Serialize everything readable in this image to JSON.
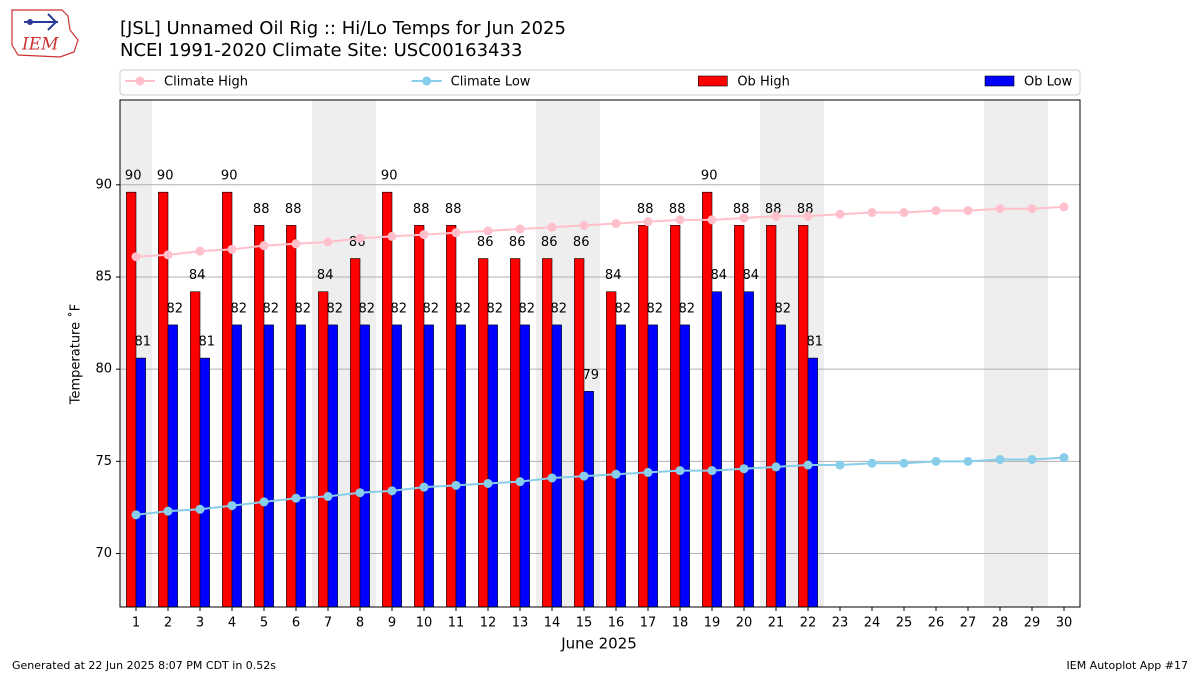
{
  "chart_data": {
    "type": "bar",
    "title": "[JSL] Unnamed Oil Rig :: Hi/Lo Temps for Jun 2025",
    "subtitle": "NCEI 1991-2020 Climate Site: USC00163433",
    "x_label": "June 2025",
    "y_label": "Temperature ˚F",
    "categories": [
      "1",
      "2",
      "3",
      "4",
      "5",
      "6",
      "7",
      "8",
      "9",
      "10",
      "11",
      "12",
      "13",
      "14",
      "15",
      "16",
      "17",
      "18",
      "19",
      "20",
      "21",
      "22",
      "23",
      "24",
      "25",
      "26",
      "27",
      "28",
      "29",
      "30"
    ],
    "weekend_shading": [
      true,
      false,
      false,
      false,
      false,
      false,
      true,
      true,
      false,
      false,
      false,
      false,
      false,
      true,
      true,
      false,
      false,
      false,
      false,
      false,
      true,
      true,
      false,
      false,
      false,
      false,
      false,
      true,
      true,
      false
    ],
    "ylim": [
      67.1,
      94.6
    ],
    "yticks": [
      70,
      75,
      80,
      85,
      90
    ],
    "grid": true,
    "legend": "top",
    "series": [
      {
        "name": "Climate High",
        "type": "line",
        "color": "#ffc0cb",
        "values": [
          86.1,
          86.2,
          86.4,
          86.5,
          86.7,
          86.8,
          86.9,
          87.1,
          87.2,
          87.3,
          87.4,
          87.5,
          87.6,
          87.7,
          87.8,
          87.9,
          88.0,
          88.1,
          88.1,
          88.2,
          88.3,
          88.3,
          88.4,
          88.5,
          88.5,
          88.6,
          88.6,
          88.7,
          88.7,
          88.8
        ]
      },
      {
        "name": "Climate Low",
        "type": "line",
        "color": "#87ceeb",
        "values": [
          72.1,
          72.3,
          72.4,
          72.6,
          72.8,
          73.0,
          73.1,
          73.3,
          73.4,
          73.6,
          73.7,
          73.8,
          73.9,
          74.1,
          74.2,
          74.3,
          74.4,
          74.5,
          74.5,
          74.6,
          74.7,
          74.8,
          74.8,
          74.9,
          74.9,
          75.0,
          75.0,
          75.1,
          75.1,
          75.2
        ]
      },
      {
        "name": "Ob High",
        "type": "bar",
        "color": "#ff0000",
        "values": [
          89.6,
          89.6,
          84.2,
          89.6,
          87.8,
          87.8,
          84.2,
          86.0,
          89.6,
          87.8,
          87.8,
          86.0,
          86.0,
          86.0,
          86.0,
          84.2,
          87.8,
          87.8,
          89.6,
          87.8,
          87.8,
          87.8,
          null,
          null,
          null,
          null,
          null,
          null,
          null,
          null
        ],
        "value_labels": [
          "90",
          "90",
          "84",
          "90",
          "88",
          "88",
          "84",
          "86",
          "90",
          "88",
          "88",
          "86",
          "86",
          "86",
          "86",
          "84",
          "88",
          "88",
          "90",
          "88",
          "88",
          "88",
          null,
          null,
          null,
          null,
          null,
          null,
          null,
          null
        ]
      },
      {
        "name": "Ob Low",
        "type": "bar",
        "color": "#0000ff",
        "values": [
          80.6,
          82.4,
          80.6,
          82.4,
          82.4,
          82.4,
          82.4,
          82.4,
          82.4,
          82.4,
          82.4,
          82.4,
          82.4,
          82.4,
          78.8,
          82.4,
          82.4,
          82.4,
          84.2,
          84.2,
          82.4,
          80.6,
          null,
          null,
          null,
          null,
          null,
          null,
          null,
          null
        ],
        "value_labels": [
          "81",
          "82",
          "81",
          "82",
          "82",
          "82",
          "82",
          "82",
          "82",
          "82",
          "82",
          "82",
          "82",
          "82",
          "79",
          "82",
          "82",
          "82",
          "84",
          "84",
          "82",
          "81",
          null,
          null,
          null,
          null,
          null,
          null,
          null,
          null
        ]
      }
    ]
  },
  "logo_text": "IEM",
  "footer_left": "Generated at 22 Jun 2025 8:07 PM CDT in 0.52s",
  "footer_right": "IEM Autoplot App #17"
}
